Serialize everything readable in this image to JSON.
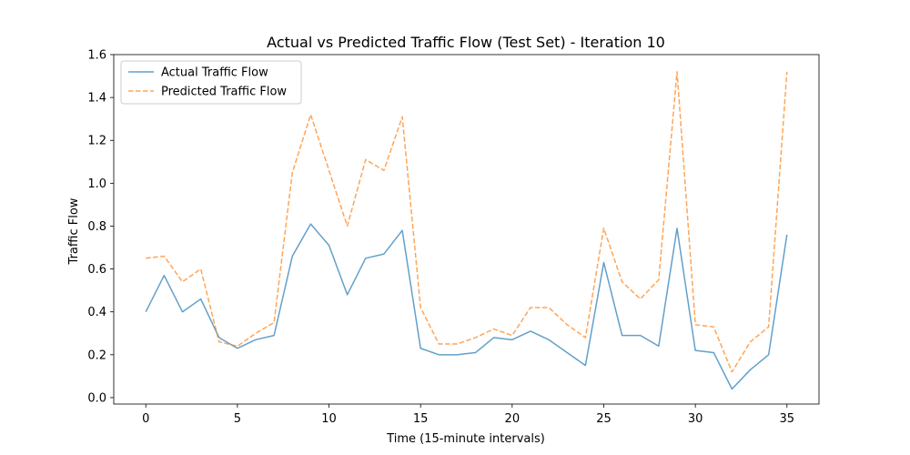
{
  "chart_data": {
    "type": "line",
    "title": "Actual vs Predicted Traffic Flow (Test Set) - Iteration 10",
    "xlabel": "Time (15-minute intervals)",
    "ylabel": "Traffic Flow",
    "xlim": [
      -1.75,
      36.75
    ],
    "ylim": [
      -0.03,
      1.6
    ],
    "xticks": [
      0,
      5,
      10,
      15,
      20,
      25,
      30,
      35
    ],
    "yticks": [
      0.0,
      0.2,
      0.4,
      0.6,
      0.8,
      1.0,
      1.2,
      1.4,
      1.6
    ],
    "ytick_labels": [
      "0.0",
      "0.2",
      "0.4",
      "0.6",
      "0.8",
      "1.0",
      "1.2",
      "1.4",
      "1.6"
    ],
    "legend_position": "top-left",
    "grid": false,
    "x": [
      0,
      1,
      2,
      3,
      4,
      5,
      6,
      7,
      8,
      9,
      10,
      11,
      12,
      13,
      14,
      15,
      16,
      17,
      18,
      19,
      20,
      21,
      22,
      23,
      24,
      25,
      26,
      27,
      28,
      29,
      30,
      31,
      32,
      33,
      34,
      35
    ],
    "series": [
      {
        "name": "Actual Traffic Flow",
        "color": "#1f77b4",
        "style": "solid",
        "values": [
          0.4,
          0.57,
          0.4,
          0.46,
          0.28,
          0.23,
          0.27,
          0.29,
          0.66,
          0.81,
          0.71,
          0.48,
          0.65,
          0.67,
          0.78,
          0.23,
          0.2,
          0.2,
          0.21,
          0.28,
          0.27,
          0.31,
          0.27,
          0.21,
          0.15,
          0.63,
          0.29,
          0.29,
          0.24,
          0.79,
          0.22,
          0.21,
          0.04,
          0.13,
          0.2,
          0.76
        ]
      },
      {
        "name": "Predicted Traffic Flow",
        "color": "#ff7f0e",
        "style": "dashed",
        "values": [
          0.65,
          0.66,
          0.54,
          0.6,
          0.26,
          0.24,
          0.3,
          0.35,
          1.05,
          1.32,
          1.06,
          0.8,
          1.11,
          1.06,
          1.31,
          0.42,
          0.25,
          0.25,
          0.28,
          0.32,
          0.29,
          0.42,
          0.42,
          0.34,
          0.28,
          0.79,
          0.54,
          0.46,
          0.55,
          1.52,
          0.34,
          0.33,
          0.12,
          0.26,
          0.33,
          1.52
        ]
      }
    ]
  }
}
